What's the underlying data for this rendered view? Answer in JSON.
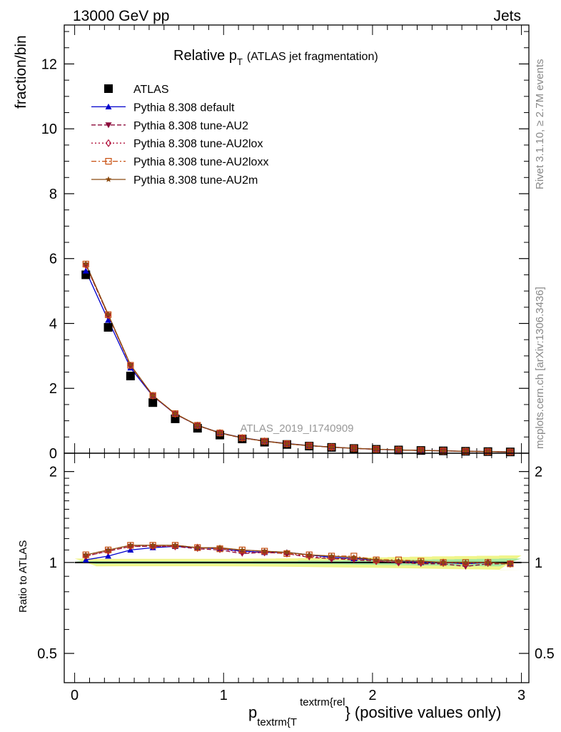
{
  "header": {
    "left": "13000 GeV pp",
    "right": "Jets"
  },
  "side_text": {
    "rivet": "Rivet 3.1.10, ≥ 2.7M events",
    "source": "mcplots.cern.ch [arXiv:1306.3436]"
  },
  "title": {
    "main": "Relative p",
    "sub": "T",
    "small": "(ATLAS jet fragmentation)"
  },
  "watermark": "ATLAS_2019_I1740909",
  "legend": [
    {
      "label": "ATLAS",
      "color": "#000000",
      "marker": "square",
      "dash": "none"
    },
    {
      "label": "Pythia 8.308 default",
      "color": "#0000cc",
      "marker": "triangle-up",
      "dash": "solid"
    },
    {
      "label": "Pythia 8.308 tune-AU2",
      "color": "#8b0a3a",
      "marker": "triangle-down",
      "dash": "dashed"
    },
    {
      "label": "Pythia 8.308 tune-AU2lox",
      "color": "#b0103a",
      "marker": "diamond-open",
      "dash": "dotted"
    },
    {
      "label": "Pythia 8.308 tune-AU2loxx",
      "color": "#c84f10",
      "marker": "square-open",
      "dash": "dashdot"
    },
    {
      "label": "Pythia 8.308 tune-AU2m",
      "color": "#8b4a10",
      "marker": "star",
      "dash": "solid"
    }
  ],
  "chart_data": [
    {
      "type": "line",
      "panel": "main",
      "ylabel": "fraction/bin",
      "xlim": [
        -0.07,
        3.05
      ],
      "ylim": [
        0,
        13.2
      ],
      "yticks": [
        0,
        2,
        4,
        6,
        8,
        10,
        12
      ],
      "ytick_labels": [
        "0",
        "2",
        "4",
        "6",
        "8",
        "10",
        "12"
      ],
      "x": [
        0.075,
        0.225,
        0.375,
        0.525,
        0.675,
        0.825,
        0.975,
        1.125,
        1.275,
        1.425,
        1.575,
        1.725,
        1.875,
        2.025,
        2.175,
        2.325,
        2.475,
        2.625,
        2.775,
        2.925
      ],
      "series": [
        {
          "name": "ATLAS",
          "values": [
            5.5,
            3.88,
            2.38,
            1.56,
            1.06,
            0.77,
            0.56,
            0.44,
            0.34,
            0.27,
            0.22,
            0.18,
            0.145,
            0.12,
            0.1,
            0.085,
            0.072,
            0.06,
            0.05,
            0.04
          ]
        },
        {
          "name": "Pythia 8.308 default",
          "values": [
            5.62,
            4.1,
            2.63,
            1.76,
            1.21,
            0.86,
            0.63,
            0.48,
            0.375,
            0.3,
            0.235,
            0.19,
            0.15,
            0.122,
            0.1,
            0.085,
            0.072,
            0.06,
            0.05,
            0.04
          ]
        },
        {
          "name": "Pythia 8.308 tune-AU2",
          "values": [
            5.8,
            4.25,
            2.7,
            1.77,
            1.21,
            0.855,
            0.62,
            0.47,
            0.37,
            0.29,
            0.23,
            0.186,
            0.148,
            0.122,
            0.1,
            0.085,
            0.072,
            0.058,
            0.05,
            0.04
          ]
        },
        {
          "name": "Pythia 8.308 tune-AU2lox",
          "values": [
            5.8,
            4.25,
            2.7,
            1.77,
            1.21,
            0.855,
            0.625,
            0.47,
            0.37,
            0.29,
            0.232,
            0.187,
            0.15,
            0.122,
            0.1,
            0.085,
            0.072,
            0.06,
            0.05,
            0.04
          ]
        },
        {
          "name": "Pythia 8.308 tune-AU2loxx",
          "values": [
            5.83,
            4.27,
            2.71,
            1.78,
            1.22,
            0.86,
            0.625,
            0.475,
            0.372,
            0.292,
            0.234,
            0.189,
            0.152,
            0.123,
            0.101,
            0.086,
            0.072,
            0.06,
            0.05,
            0.04
          ]
        },
        {
          "name": "Pythia 8.308 tune-AU2m",
          "values": [
            5.84,
            4.28,
            2.72,
            1.78,
            1.22,
            0.86,
            0.626,
            0.474,
            0.372,
            0.291,
            0.233,
            0.188,
            0.151,
            0.123,
            0.101,
            0.086,
            0.072,
            0.06,
            0.05,
            0.04
          ]
        }
      ]
    },
    {
      "type": "line",
      "panel": "ratio",
      "xlabel_main": "p",
      "xlabel_sub": "textrm{T",
      "xlabel_sup": "textrm{rel",
      "xlabel_rest": "} (positive values only)",
      "ylabel": "Ratio to ATLAS",
      "xlim": [
        -0.07,
        3.05
      ],
      "ylim": [
        0.4,
        2.3
      ],
      "log_y": true,
      "xticks": [
        0,
        1,
        2,
        3
      ],
      "xtick_labels": [
        "0",
        "1",
        "2",
        "3"
      ],
      "yticks": [
        0.5,
        1,
        2
      ],
      "ytick_labels": [
        "0.5",
        "1",
        "2"
      ],
      "x": [
        0.075,
        0.225,
        0.375,
        0.525,
        0.675,
        0.825,
        0.975,
        1.125,
        1.275,
        1.425,
        1.575,
        1.725,
        1.875,
        2.025,
        2.175,
        2.325,
        2.475,
        2.625,
        2.775,
        2.925
      ],
      "band_green_halfwidth": [
        0.012,
        0.01,
        0.01,
        0.01,
        0.01,
        0.01,
        0.01,
        0.01,
        0.012,
        0.012,
        0.014,
        0.014,
        0.016,
        0.018,
        0.02,
        0.022,
        0.024,
        0.026,
        0.028,
        0.03
      ],
      "band_yellow_halfwidth": [
        0.03,
        0.028,
        0.028,
        0.028,
        0.028,
        0.028,
        0.028,
        0.03,
        0.03,
        0.032,
        0.034,
        0.036,
        0.038,
        0.04,
        0.042,
        0.045,
        0.048,
        0.05,
        0.052,
        0.055
      ],
      "series": [
        {
          "name": "Pythia 8.308 default",
          "values": [
            1.02,
            1.05,
            1.1,
            1.12,
            1.13,
            1.12,
            1.11,
            1.09,
            1.08,
            1.08,
            1.06,
            1.04,
            1.03,
            1.02,
            1.01,
            1.0,
            1.0,
            0.99,
            1.0,
            0.99
          ]
        },
        {
          "name": "Pythia 8.308 tune-AU2",
          "values": [
            1.05,
            1.09,
            1.13,
            1.13,
            1.13,
            1.11,
            1.1,
            1.07,
            1.08,
            1.07,
            1.04,
            1.03,
            1.02,
            1.01,
            1.0,
            0.99,
            0.99,
            0.97,
            0.99,
            0.99
          ]
        },
        {
          "name": "Pythia 8.308 tune-AU2lox",
          "values": [
            1.05,
            1.09,
            1.13,
            1.13,
            1.13,
            1.12,
            1.11,
            1.08,
            1.08,
            1.07,
            1.05,
            1.03,
            1.03,
            1.01,
            1.0,
            1.0,
            1.0,
            0.99,
            1.0,
            0.99
          ]
        },
        {
          "name": "Pythia 8.308 tune-AU2loxx",
          "values": [
            1.06,
            1.1,
            1.14,
            1.14,
            1.14,
            1.12,
            1.11,
            1.1,
            1.09,
            1.07,
            1.06,
            1.05,
            1.05,
            1.02,
            1.02,
            1.01,
            1.0,
            1.0,
            1.0,
            0.99
          ]
        },
        {
          "name": "Pythia 8.308 tune-AU2m",
          "values": [
            1.06,
            1.1,
            1.14,
            1.14,
            1.14,
            1.12,
            1.12,
            1.1,
            1.09,
            1.08,
            1.06,
            1.05,
            1.04,
            1.02,
            1.01,
            1.01,
            1.0,
            1.0,
            1.0,
            0.99
          ]
        }
      ]
    }
  ]
}
